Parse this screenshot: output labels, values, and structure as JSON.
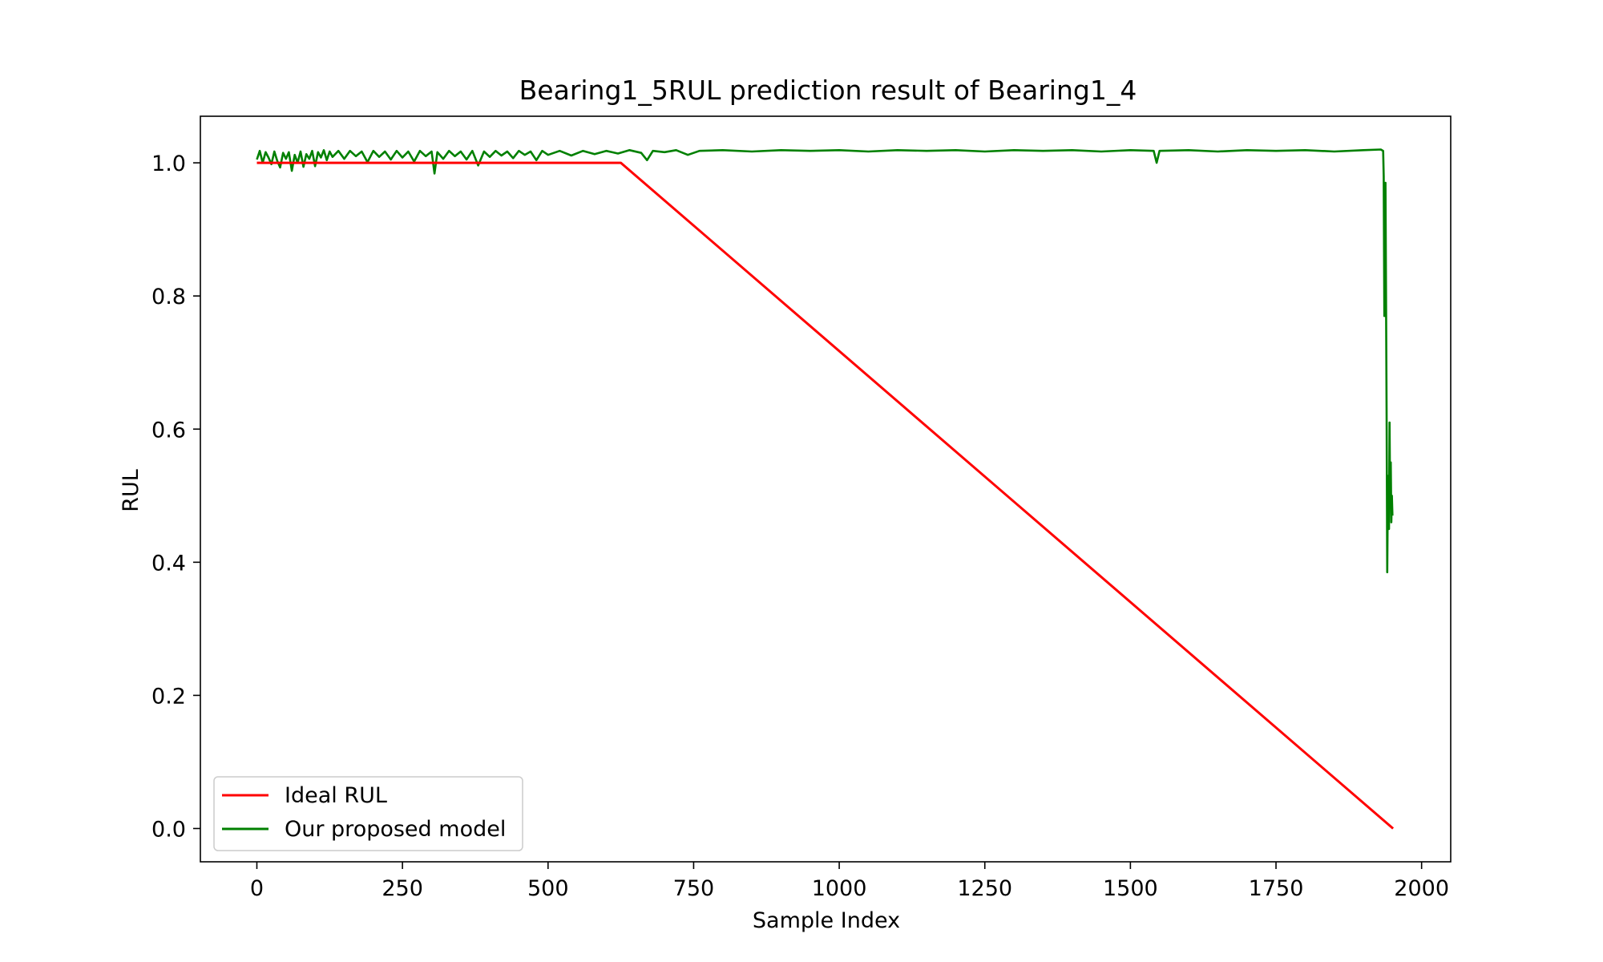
{
  "chart_data": {
    "type": "line",
    "title": "Bearing1_5RUL prediction result of Bearing1_4",
    "xlabel": "Sample Index",
    "ylabel": "RUL",
    "xlim": [
      -97,
      2050
    ],
    "ylim": [
      -0.05,
      1.07
    ],
    "xticks": [
      0,
      250,
      500,
      750,
      1000,
      1250,
      1500,
      1750,
      2000
    ],
    "xtick_labels": [
      "0",
      "250",
      "500",
      "750",
      "1000",
      "1250",
      "1500",
      "1750",
      "2000"
    ],
    "yticks": [
      0.0,
      0.2,
      0.4,
      0.6,
      0.8,
      1.0
    ],
    "ytick_labels": [
      "0.0",
      "0.2",
      "0.4",
      "0.6",
      "0.8",
      "1.0"
    ],
    "grid": false,
    "legend_position": "lower-left",
    "series": [
      {
        "name": "Ideal RUL",
        "color": "#ff0000",
        "points": [
          [
            0,
            1.0
          ],
          [
            625,
            1.0
          ],
          [
            1951,
            0.0
          ]
        ]
      },
      {
        "name": "Our proposed model",
        "color": "#008000",
        "points": [
          [
            0,
            1.005
          ],
          [
            5,
            1.018
          ],
          [
            10,
            1.0
          ],
          [
            15,
            1.016
          ],
          [
            20,
            1.008
          ],
          [
            25,
            0.998
          ],
          [
            30,
            1.017
          ],
          [
            35,
            1.003
          ],
          [
            40,
            0.993
          ],
          [
            45,
            1.015
          ],
          [
            50,
            1.006
          ],
          [
            55,
            1.016
          ],
          [
            60,
            0.988
          ],
          [
            65,
            1.012
          ],
          [
            70,
            1.0
          ],
          [
            75,
            1.017
          ],
          [
            80,
            0.994
          ],
          [
            85,
            1.013
          ],
          [
            90,
            1.006
          ],
          [
            95,
            1.018
          ],
          [
            100,
            0.995
          ],
          [
            105,
            1.016
          ],
          [
            110,
            1.008
          ],
          [
            115,
            1.019
          ],
          [
            120,
            1.004
          ],
          [
            125,
            1.017
          ],
          [
            130,
            1.009
          ],
          [
            140,
            1.018
          ],
          [
            150,
            1.006
          ],
          [
            160,
            1.018
          ],
          [
            170,
            1.01
          ],
          [
            180,
            1.017
          ],
          [
            190,
            1.001
          ],
          [
            200,
            1.018
          ],
          [
            210,
            1.009
          ],
          [
            220,
            1.017
          ],
          [
            230,
            1.005
          ],
          [
            240,
            1.018
          ],
          [
            250,
            1.008
          ],
          [
            260,
            1.017
          ],
          [
            270,
            1.002
          ],
          [
            280,
            1.018
          ],
          [
            290,
            1.01
          ],
          [
            300,
            1.017
          ],
          [
            305,
            0.984
          ],
          [
            310,
            1.016
          ],
          [
            320,
            1.006
          ],
          [
            330,
            1.018
          ],
          [
            340,
            1.01
          ],
          [
            350,
            1.017
          ],
          [
            360,
            1.005
          ],
          [
            370,
            1.018
          ],
          [
            380,
            0.996
          ],
          [
            390,
            1.017
          ],
          [
            400,
            1.009
          ],
          [
            410,
            1.018
          ],
          [
            420,
            1.011
          ],
          [
            430,
            1.017
          ],
          [
            440,
            1.007
          ],
          [
            450,
            1.018
          ],
          [
            460,
            1.012
          ],
          [
            470,
            1.017
          ],
          [
            480,
            1.004
          ],
          [
            490,
            1.018
          ],
          [
            500,
            1.012
          ],
          [
            520,
            1.018
          ],
          [
            540,
            1.011
          ],
          [
            560,
            1.018
          ],
          [
            580,
            1.013
          ],
          [
            600,
            1.018
          ],
          [
            620,
            1.014
          ],
          [
            640,
            1.019
          ],
          [
            660,
            1.015
          ],
          [
            670,
            1.004
          ],
          [
            680,
            1.018
          ],
          [
            700,
            1.016
          ],
          [
            720,
            1.019
          ],
          [
            740,
            1.012
          ],
          [
            760,
            1.018
          ],
          [
            800,
            1.019
          ],
          [
            850,
            1.017
          ],
          [
            900,
            1.019
          ],
          [
            950,
            1.018
          ],
          [
            1000,
            1.019
          ],
          [
            1050,
            1.017
          ],
          [
            1100,
            1.019
          ],
          [
            1150,
            1.018
          ],
          [
            1200,
            1.019
          ],
          [
            1250,
            1.017
          ],
          [
            1300,
            1.019
          ],
          [
            1350,
            1.018
          ],
          [
            1400,
            1.019
          ],
          [
            1450,
            1.017
          ],
          [
            1500,
            1.019
          ],
          [
            1540,
            1.018
          ],
          [
            1545,
            1.0
          ],
          [
            1550,
            1.018
          ],
          [
            1600,
            1.019
          ],
          [
            1650,
            1.017
          ],
          [
            1700,
            1.019
          ],
          [
            1750,
            1.018
          ],
          [
            1800,
            1.019
          ],
          [
            1850,
            1.017
          ],
          [
            1900,
            1.019
          ],
          [
            1930,
            1.02
          ],
          [
            1934,
            1.018
          ],
          [
            1935,
            0.98
          ],
          [
            1936,
            0.77
          ],
          [
            1937,
            0.9
          ],
          [
            1938,
            0.97
          ],
          [
            1939,
            0.8
          ],
          [
            1940,
            0.6
          ],
          [
            1941,
            0.385
          ],
          [
            1942,
            0.5
          ],
          [
            1943,
            0.53
          ],
          [
            1944,
            0.45
          ],
          [
            1945,
            0.61
          ],
          [
            1946,
            0.49
          ],
          [
            1947,
            0.55
          ],
          [
            1948,
            0.46
          ],
          [
            1949,
            0.5
          ],
          [
            1950,
            0.47
          ]
        ]
      }
    ]
  }
}
